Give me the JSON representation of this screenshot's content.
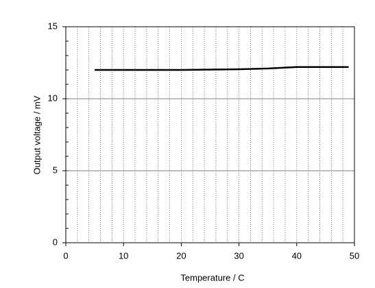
{
  "chart_data": {
    "type": "line",
    "x_label": "Temperature / C",
    "y_label": "Output voltage / mV",
    "x": [
      5,
      10,
      20,
      30,
      35,
      40,
      49
    ],
    "series": [
      {
        "color": "#000000",
        "values": [
          12.0,
          12.0,
          12.0,
          12.05,
          12.1,
          12.2,
          12.2
        ]
      }
    ],
    "xlim": [
      0,
      50
    ],
    "xticks": [
      0,
      10,
      20,
      30,
      40,
      50
    ],
    "ylim": [
      0,
      15
    ],
    "yticks": [
      0,
      5,
      10,
      15
    ],
    "x_minor_step": 2,
    "y_minor_step": 1,
    "grid": true
  }
}
